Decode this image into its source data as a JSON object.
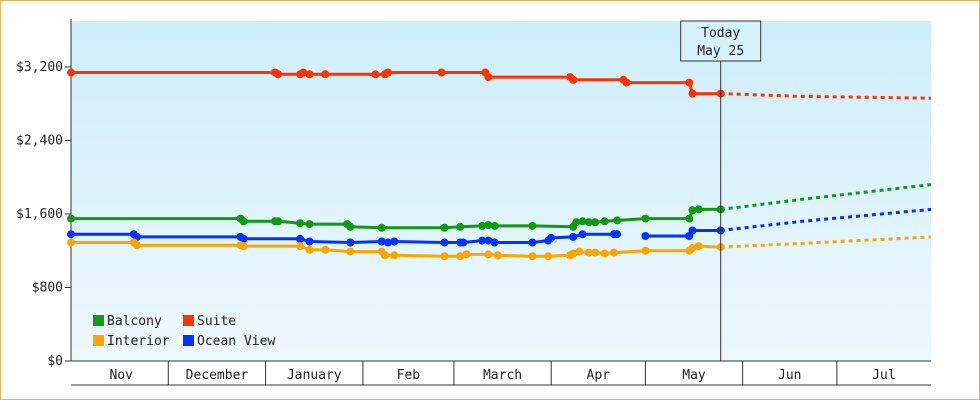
{
  "chart_data": {
    "type": "line",
    "x_axis": {
      "type": "date",
      "range": [
        "2023-10-31",
        "2024-07-31"
      ],
      "month_labels": [
        {
          "label": "Nov",
          "start": "2023-11-01",
          "end": "2023-12-01"
        },
        {
          "label": "December",
          "start": "2023-12-01",
          "end": "2024-01-01"
        },
        {
          "label": "January",
          "start": "2024-01-01",
          "end": "2024-02-01"
        },
        {
          "label": "Feb",
          "start": "2024-02-01",
          "end": "2024-03-01"
        },
        {
          "label": "March",
          "start": "2024-03-01",
          "end": "2024-04-01"
        },
        {
          "label": "Apr",
          "start": "2024-04-01",
          "end": "2024-05-01"
        },
        {
          "label": "May",
          "start": "2024-05-01",
          "end": "2024-06-01"
        },
        {
          "label": "Jun",
          "start": "2024-06-01",
          "end": "2024-07-01"
        },
        {
          "label": "Jul",
          "start": "2024-07-01",
          "end": "2024-07-31"
        }
      ]
    },
    "y_axis": {
      "range": [
        0,
        3200
      ],
      "display_max": 3700,
      "ticks": [
        {
          "value": 0,
          "label": "$0"
        },
        {
          "value": 800,
          "label": "$800"
        },
        {
          "value": 1600,
          "label": "$1,600"
        },
        {
          "value": 2400,
          "label": "$2,400"
        },
        {
          "value": 3200,
          "label": "$3,200"
        }
      ]
    },
    "grid": false,
    "background": {
      "top": "#cdeefb",
      "bottom": "#eef9fd"
    },
    "today_marker": {
      "line1": "Today",
      "line2": "May 25",
      "date": "2024-05-25"
    },
    "legend": {
      "placement": "bottom-left",
      "items": [
        {
          "name": "Balcony",
          "color": "#119911"
        },
        {
          "name": "Suite",
          "color": "#ff3300"
        },
        {
          "name": "Interior",
          "color": "#ffa500"
        },
        {
          "name": "Ocean View",
          "color": "#0033ff"
        }
      ]
    },
    "series": [
      {
        "name": "Suite",
        "color": "#ff3300",
        "points": [
          [
            "2023-10-31",
            3140
          ],
          [
            "2024-01-04",
            3140
          ],
          [
            "2024-01-05",
            3120
          ],
          [
            "2024-01-12",
            3120
          ],
          [
            "2024-01-13",
            3140
          ],
          [
            "2024-01-15",
            3120
          ],
          [
            "2024-01-20",
            3120
          ],
          [
            "2024-02-05",
            3120
          ],
          [
            "2024-02-08",
            3120
          ],
          [
            "2024-02-09",
            3140
          ],
          [
            "2024-02-26",
            3140
          ],
          [
            "2024-03-11",
            3140
          ],
          [
            "2024-03-12",
            3090
          ],
          [
            "2024-04-07",
            3090
          ],
          [
            "2024-04-08",
            3060
          ],
          [
            "2024-04-24",
            3060
          ],
          [
            "2024-04-25",
            3030
          ],
          [
            "2024-05-15",
            3030
          ],
          [
            "2024-05-16",
            2910
          ],
          [
            "2024-05-25",
            2910
          ]
        ],
        "forecast": [
          [
            "2024-05-25",
            2910
          ],
          [
            "2024-06-20",
            2880
          ],
          [
            "2024-07-31",
            2860
          ]
        ]
      },
      {
        "name": "Balcony",
        "color": "#119911",
        "points": [
          [
            "2023-10-31",
            1550
          ],
          [
            "2023-12-24",
            1550
          ],
          [
            "2023-12-25",
            1520
          ],
          [
            "2024-01-04",
            1520
          ],
          [
            "2024-01-05",
            1520
          ],
          [
            "2024-01-12",
            1500
          ],
          [
            "2024-01-15",
            1490
          ],
          [
            "2024-01-27",
            1490
          ],
          [
            "2024-01-28",
            1460
          ],
          [
            "2024-02-07",
            1450
          ],
          [
            "2024-02-27",
            1450
          ],
          [
            "2024-03-03",
            1460
          ],
          [
            "2024-03-10",
            1470
          ],
          [
            "2024-03-12",
            1480
          ],
          [
            "2024-03-14",
            1470
          ],
          [
            "2024-03-26",
            1470
          ],
          [
            "2024-04-08",
            1460
          ],
          [
            "2024-04-09",
            1510
          ],
          [
            "2024-04-11",
            1520
          ],
          [
            "2024-04-13",
            1510
          ],
          [
            "2024-04-15",
            1510
          ],
          [
            "2024-04-18",
            1520
          ],
          [
            "2024-04-22",
            1530
          ],
          [
            "2024-05-01",
            1550
          ],
          [
            "2024-05-15",
            1550
          ],
          [
            "2024-05-16",
            1640
          ],
          [
            "2024-05-18",
            1650
          ],
          [
            "2024-05-25",
            1650
          ]
        ],
        "forecast": [
          [
            "2024-05-25",
            1650
          ],
          [
            "2024-06-20",
            1760
          ],
          [
            "2024-07-31",
            1920
          ]
        ]
      },
      {
        "name": "Ocean View",
        "color": "#0033ff",
        "points": [
          [
            "2023-10-31",
            1380
          ],
          [
            "2023-11-20",
            1380
          ],
          [
            "2023-11-21",
            1350
          ],
          [
            "2023-12-24",
            1350
          ],
          [
            "2023-12-25",
            1330
          ],
          [
            "2024-01-12",
            1330
          ],
          [
            "2024-01-15",
            1300
          ],
          [
            "2024-01-28",
            1290
          ],
          [
            "2024-02-07",
            1300
          ],
          [
            "2024-02-09",
            1290
          ],
          [
            "2024-02-11",
            1300
          ],
          [
            "2024-02-27",
            1290
          ],
          [
            "2024-03-03",
            1290
          ],
          [
            "2024-03-04",
            1290
          ],
          [
            "2024-03-10",
            1310
          ],
          [
            "2024-03-12",
            1310
          ],
          [
            "2024-03-14",
            1290
          ],
          [
            "2024-03-26",
            1290
          ],
          [
            "2024-03-31",
            1310
          ],
          [
            "2024-04-01",
            1340
          ],
          [
            "2024-04-08",
            1350
          ],
          [
            "2024-04-11",
            1380
          ],
          [
            "2024-04-21",
            1380
          ],
          [
            "2024-04-22",
            1380
          ]
        ],
        "points_2": [
          [
            "2024-05-01",
            1360
          ],
          [
            "2024-05-15",
            1360
          ],
          [
            "2024-05-16",
            1420
          ],
          [
            "2024-05-25",
            1420
          ]
        ],
        "forecast": [
          [
            "2024-05-25",
            1420
          ],
          [
            "2024-06-20",
            1520
          ],
          [
            "2024-07-31",
            1650
          ]
        ]
      },
      {
        "name": "Interior",
        "color": "#ffa500",
        "points": [
          [
            "2023-10-31",
            1290
          ],
          [
            "2023-11-20",
            1290
          ],
          [
            "2023-11-21",
            1260
          ],
          [
            "2023-12-24",
            1260
          ],
          [
            "2023-12-25",
            1250
          ],
          [
            "2024-01-12",
            1250
          ],
          [
            "2024-01-15",
            1210
          ],
          [
            "2024-01-20",
            1210
          ],
          [
            "2024-01-28",
            1190
          ],
          [
            "2024-02-07",
            1190
          ],
          [
            "2024-02-08",
            1150
          ],
          [
            "2024-02-11",
            1150
          ],
          [
            "2024-02-27",
            1140
          ],
          [
            "2024-03-03",
            1140
          ],
          [
            "2024-03-05",
            1160
          ],
          [
            "2024-03-12",
            1160
          ],
          [
            "2024-03-15",
            1150
          ],
          [
            "2024-03-26",
            1140
          ],
          [
            "2024-03-31",
            1140
          ],
          [
            "2024-04-07",
            1150
          ],
          [
            "2024-04-08",
            1170
          ],
          [
            "2024-04-10",
            1190
          ],
          [
            "2024-04-13",
            1180
          ],
          [
            "2024-04-15",
            1180
          ],
          [
            "2024-04-18",
            1170
          ],
          [
            "2024-04-21",
            1180
          ],
          [
            "2024-05-01",
            1200
          ],
          [
            "2024-05-15",
            1200
          ],
          [
            "2024-05-16",
            1230
          ],
          [
            "2024-05-18",
            1250
          ],
          [
            "2024-05-25",
            1240
          ]
        ],
        "forecast": [
          [
            "2024-05-25",
            1240
          ],
          [
            "2024-06-20",
            1280
          ],
          [
            "2024-07-31",
            1350
          ]
        ]
      }
    ]
  }
}
